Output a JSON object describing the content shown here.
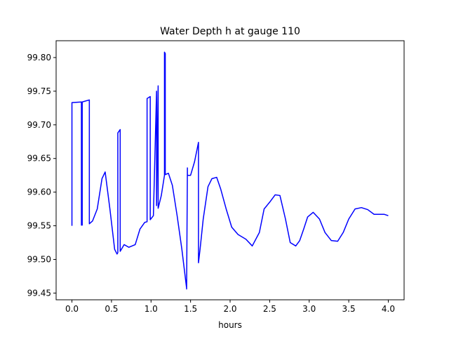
{
  "chart_data": {
    "type": "line",
    "title": "Water Depth h at gauge 110",
    "xlabel": "hours",
    "ylabel": "",
    "xlim": [
      -0.2,
      4.2
    ],
    "ylim": [
      99.44,
      99.825
    ],
    "xticks": [
      0.0,
      0.5,
      1.0,
      1.5,
      2.0,
      2.5,
      3.0,
      3.5,
      4.0
    ],
    "xtick_labels": [
      "0.0",
      "0.5",
      "1.0",
      "1.5",
      "2.0",
      "2.5",
      "3.0",
      "3.5",
      "4.0"
    ],
    "yticks": [
      99.45,
      99.5,
      99.55,
      99.6,
      99.65,
      99.7,
      99.75,
      99.8
    ],
    "ytick_labels": [
      "99.45",
      "99.50",
      "99.55",
      "99.60",
      "99.65",
      "99.70",
      "99.75",
      "99.80"
    ],
    "grid": false,
    "colors": {
      "line": "#0000ff",
      "axes": "#000000",
      "background": "#ffffff"
    },
    "series": [
      {
        "name": "",
        "x": [
          0.0,
          0.0,
          0.12,
          0.12,
          0.13,
          0.13,
          0.22,
          0.22,
          0.26,
          0.32,
          0.38,
          0.42,
          0.48,
          0.54,
          0.57,
          0.58,
          0.58,
          0.61,
          0.61,
          0.66,
          0.72,
          0.8,
          0.86,
          0.92,
          0.95,
          0.95,
          0.99,
          0.99,
          1.03,
          1.07,
          1.07,
          1.09,
          1.09,
          1.13,
          1.17,
          1.17,
          1.18,
          1.18,
          1.22,
          1.27,
          1.33,
          1.39,
          1.45,
          1.45,
          1.46,
          1.46,
          1.5,
          1.55,
          1.6,
          1.6,
          1.62,
          1.66,
          1.72,
          1.77,
          1.83,
          1.88,
          1.95,
          2.02,
          2.1,
          2.2,
          2.28,
          2.37,
          2.43,
          2.5,
          2.57,
          2.63,
          2.7,
          2.76,
          2.83,
          2.88,
          2.93,
          2.98,
          3.05,
          3.13,
          3.2,
          3.28,
          3.36,
          3.43,
          3.5,
          3.58,
          3.66,
          3.74,
          3.82,
          3.88,
          3.95,
          4.0
        ],
        "y": [
          99.55,
          99.733,
          99.734,
          99.551,
          99.551,
          99.734,
          99.737,
          99.553,
          99.557,
          99.575,
          99.62,
          99.63,
          99.575,
          99.515,
          99.508,
          99.51,
          99.688,
          99.693,
          99.512,
          99.522,
          99.518,
          99.522,
          99.545,
          99.555,
          99.556,
          99.739,
          99.742,
          99.559,
          99.565,
          99.75,
          99.58,
          99.758,
          99.576,
          99.595,
          99.625,
          99.808,
          99.806,
          99.626,
          99.628,
          99.61,
          99.565,
          99.515,
          99.457,
          99.456,
          99.636,
          99.625,
          99.625,
          99.645,
          99.674,
          99.495,
          99.515,
          99.56,
          99.608,
          99.62,
          99.622,
          99.605,
          99.575,
          99.548,
          99.537,
          99.53,
          99.52,
          99.54,
          99.575,
          99.585,
          99.596,
          99.595,
          99.56,
          99.525,
          99.52,
          99.528,
          99.545,
          99.563,
          99.57,
          99.56,
          99.54,
          99.528,
          99.527,
          99.54,
          99.56,
          99.575,
          99.577,
          99.574,
          99.567,
          99.567,
          99.567,
          99.565
        ]
      }
    ]
  }
}
